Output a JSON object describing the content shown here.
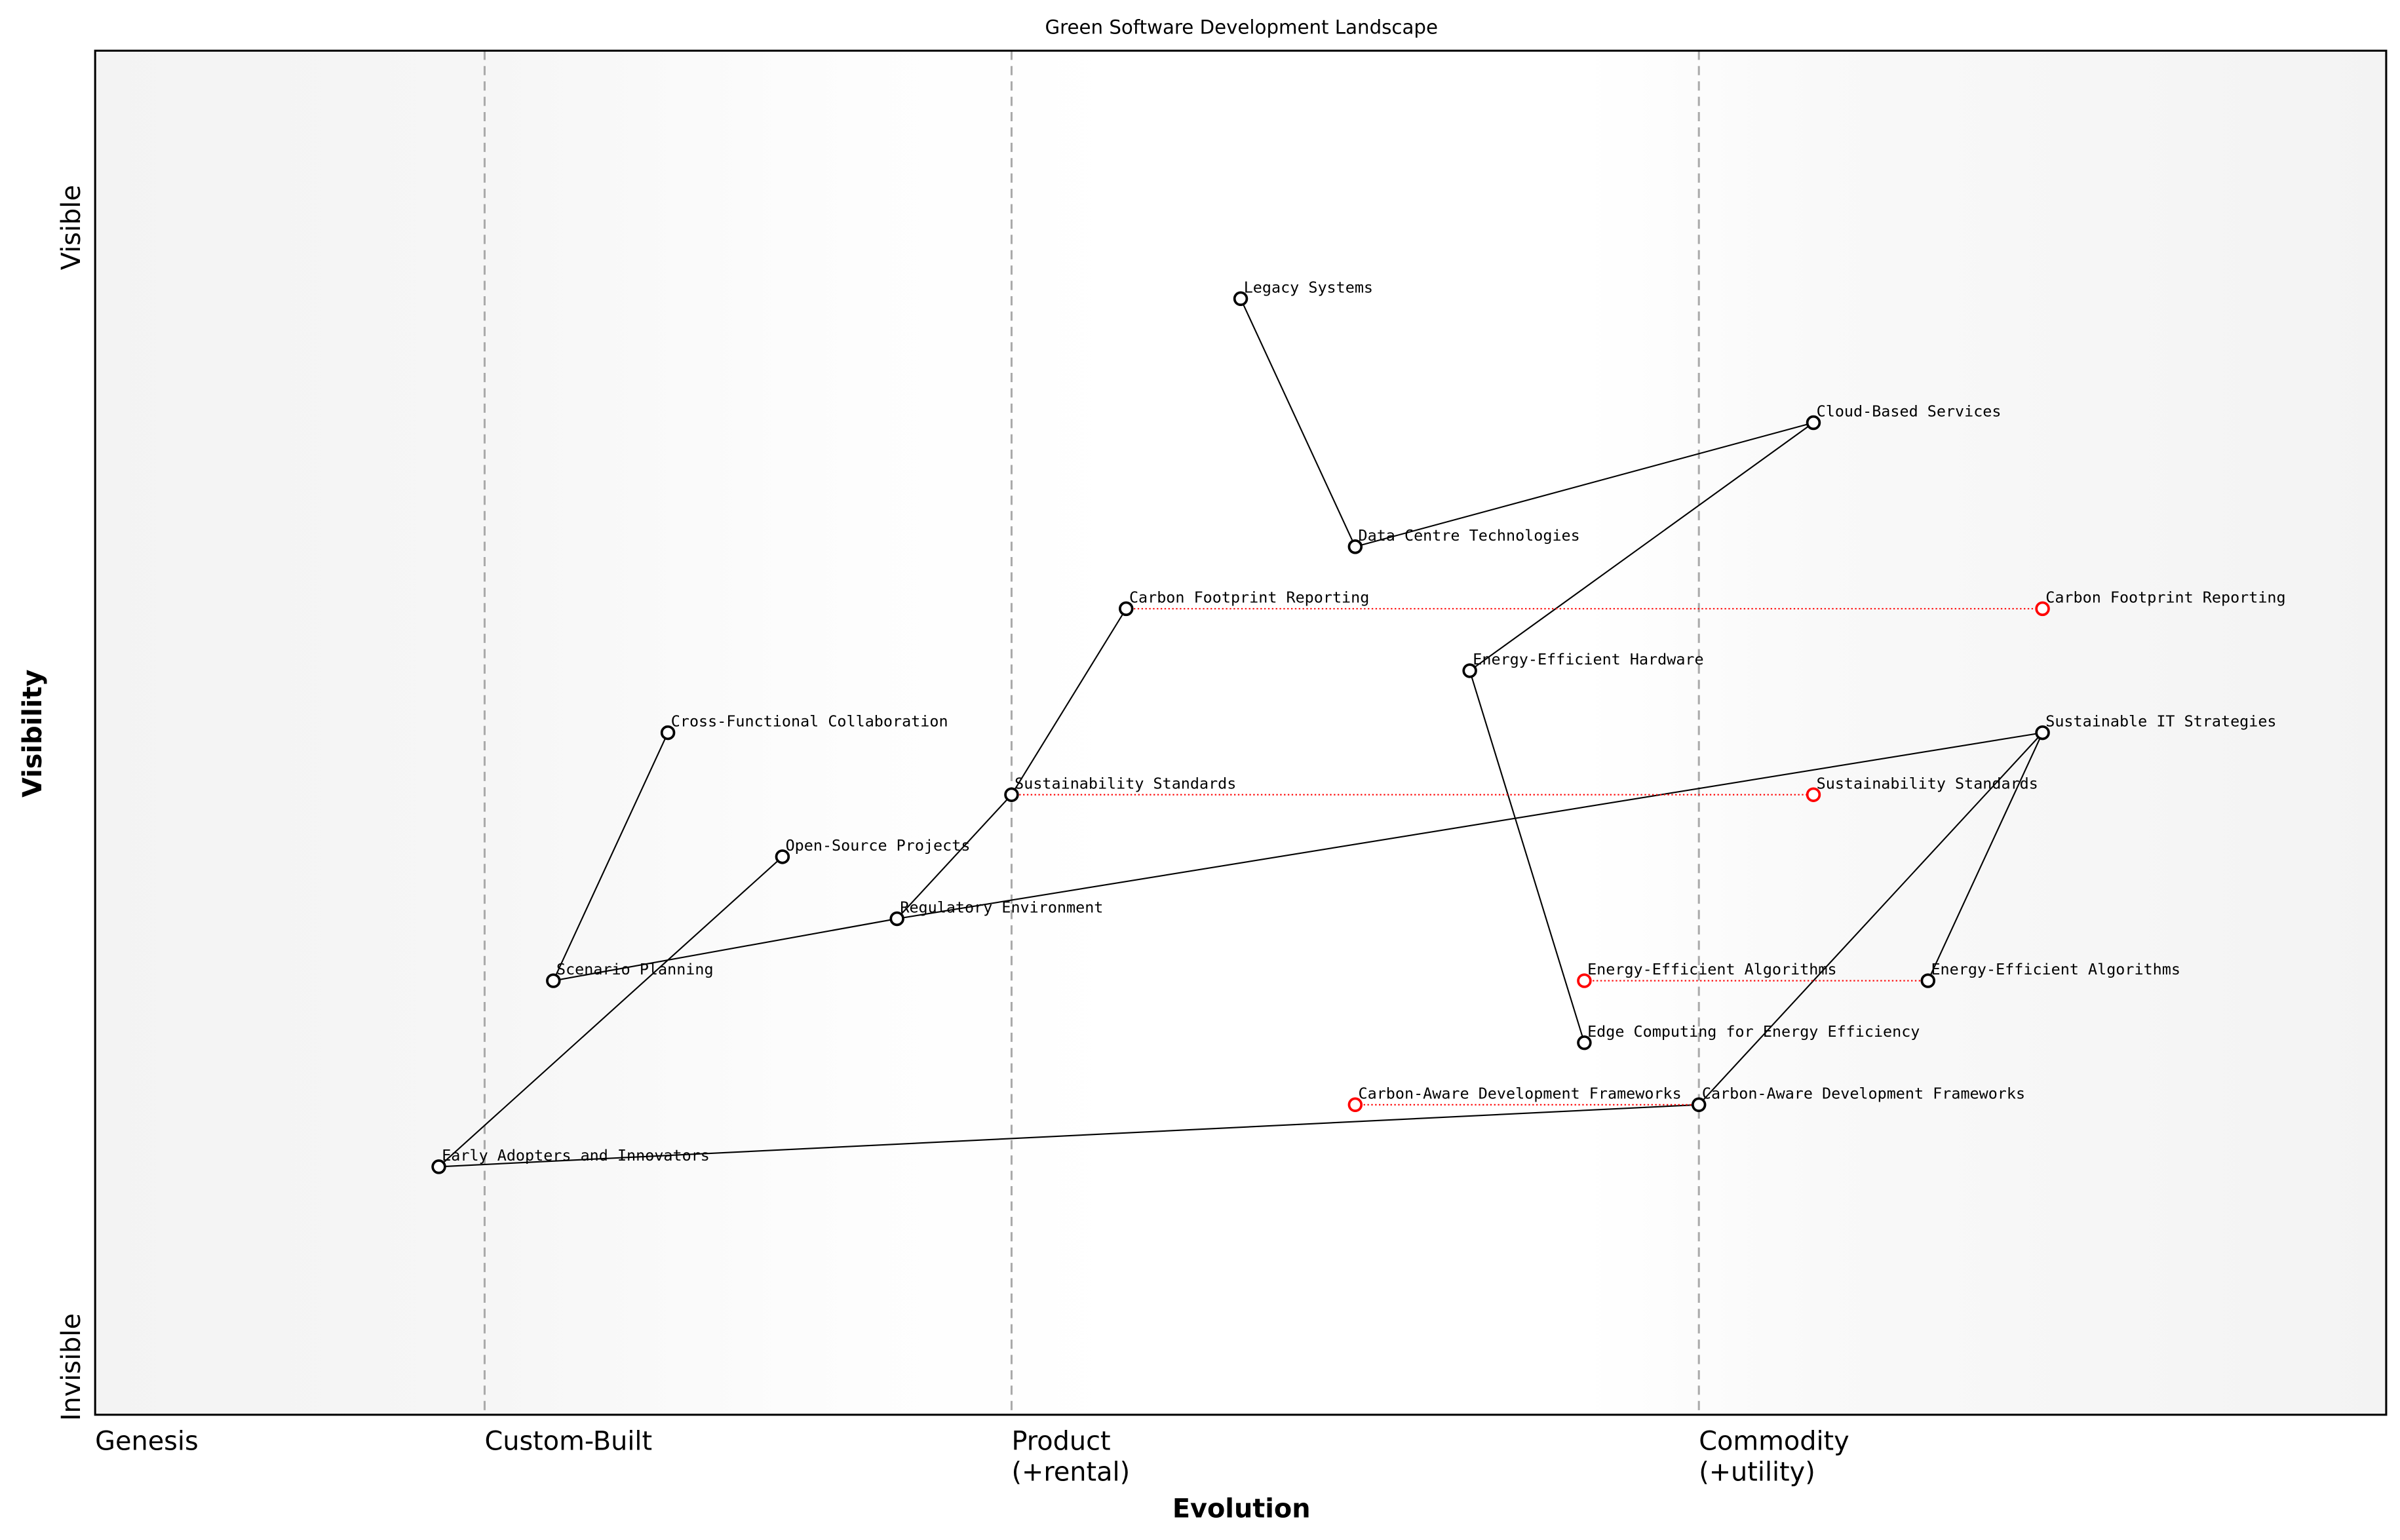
{
  "title": "Green Software Development Landscape",
  "x_axis": {
    "title": "Evolution",
    "stages": [
      {
        "label": "Genesis",
        "sub": "",
        "at": 0.0
      },
      {
        "label": "Custom-Built",
        "sub": "",
        "at": 0.17
      },
      {
        "label": "Product",
        "sub": "(+rental)",
        "at": 0.4
      },
      {
        "label": "Commodity",
        "sub": "(+utility)",
        "at": 0.7
      }
    ]
  },
  "y_axis": {
    "title": "Visibility",
    "top_label": "Visible",
    "bottom_label": "Invisible"
  },
  "chart_data": {
    "type": "scatter",
    "xlim": [
      0,
      1
    ],
    "ylim": [
      0,
      1.1
    ],
    "components": [
      {
        "id": "legacy",
        "name": "Legacy Systems",
        "evolution": 0.5,
        "visibility": 0.9
      },
      {
        "id": "cloud",
        "name": "Cloud-Based Services",
        "evolution": 0.75,
        "visibility": 0.8
      },
      {
        "id": "datacentre",
        "name": "Data Centre Technologies",
        "evolution": 0.55,
        "visibility": 0.7
      },
      {
        "id": "carbonfp",
        "name": "Carbon Footprint Reporting",
        "evolution": 0.45,
        "visibility": 0.65
      },
      {
        "id": "eehw",
        "name": "Energy-Efficient Hardware",
        "evolution": 0.6,
        "visibility": 0.6
      },
      {
        "id": "crossfunc",
        "name": "Cross-Functional Collaboration",
        "evolution": 0.25,
        "visibility": 0.55
      },
      {
        "id": "sustit",
        "name": "Sustainable IT Strategies",
        "evolution": 0.85,
        "visibility": 0.55
      },
      {
        "id": "suststd",
        "name": "Sustainability Standards",
        "evolution": 0.4,
        "visibility": 0.5
      },
      {
        "id": "opensrc",
        "name": "Open-Source Projects",
        "evolution": 0.3,
        "visibility": 0.45
      },
      {
        "id": "regenv",
        "name": "Regulatory Environment",
        "evolution": 0.35,
        "visibility": 0.4
      },
      {
        "id": "scenario",
        "name": "Scenario Planning",
        "evolution": 0.2,
        "visibility": 0.35
      },
      {
        "id": "eealg",
        "name": "Energy-Efficient Algorithms",
        "evolution": 0.8,
        "visibility": 0.35
      },
      {
        "id": "edge",
        "name": "Edge Computing for Energy Efficiency",
        "evolution": 0.65,
        "visibility": 0.3
      },
      {
        "id": "carbonaware",
        "name": "Carbon-Aware Development Frameworks",
        "evolution": 0.7,
        "visibility": 0.25
      },
      {
        "id": "early",
        "name": "Early Adopters and Innovators",
        "evolution": 0.15,
        "visibility": 0.2
      }
    ],
    "links": [
      [
        "legacy",
        "datacentre"
      ],
      [
        "datacentre",
        "cloud"
      ],
      [
        "cloud",
        "eehw"
      ],
      [
        "eehw",
        "edge"
      ],
      [
        "carbonfp",
        "suststd"
      ],
      [
        "suststd",
        "regenv"
      ],
      [
        "crossfunc",
        "scenario"
      ],
      [
        "scenario",
        "regenv"
      ],
      [
        "regenv",
        "sustit"
      ],
      [
        "opensrc",
        "early"
      ],
      [
        "early",
        "carbonaware"
      ],
      [
        "carbonaware",
        "sustit"
      ],
      [
        "sustit",
        "eealg"
      ]
    ],
    "evolutions": [
      {
        "name": "Carbon Footprint Reporting",
        "from": 0.45,
        "to": 0.85,
        "visibility": 0.65
      },
      {
        "name": "Sustainability Standards",
        "from": 0.4,
        "to": 0.75,
        "visibility": 0.5
      },
      {
        "name": "Energy-Efficient Algorithms",
        "from": 0.8,
        "to": 0.65,
        "visibility": 0.35
      },
      {
        "name": "Carbon-Aware Development Frameworks",
        "from": 0.7,
        "to": 0.55,
        "visibility": 0.25
      }
    ],
    "colors": {
      "component": "#000000",
      "evolved": "#ff0000",
      "stage_line": "#aaaaaa",
      "background_edge": "#f4f4f4"
    }
  }
}
